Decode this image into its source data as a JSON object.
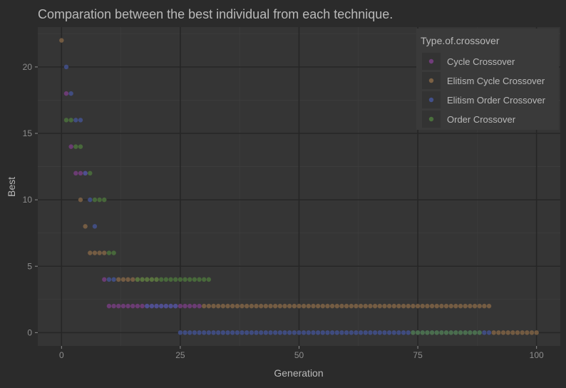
{
  "chart_data": {
    "type": "scatter",
    "title": "Comparation between the best individual from each technique.",
    "xlabel": "Generation",
    "ylabel": "Best",
    "xlim": [
      -5,
      105
    ],
    "ylim": [
      -1,
      23
    ],
    "x_ticks": [
      0,
      25,
      50,
      75,
      100
    ],
    "y_ticks": [
      0,
      5,
      10,
      15,
      20
    ],
    "grid": true,
    "legend": {
      "title": "Type.of.crossover",
      "placement": "top-right",
      "entries": [
        "Cycle Crossover",
        "Elitism Cycle Crossover",
        "Elitism Order Crossover",
        "Order Crossover"
      ]
    },
    "colors": {
      "background": "#2b2b2b",
      "panel": "#353535",
      "grid_major": "#262626",
      "grid_minor": "#3d3d3d",
      "text": "#b9b9b9",
      "axis_text": "#8e8e8e"
    },
    "series": [
      {
        "name": "Cycle Crossover",
        "color": "#7d3f88",
        "segments": [
          {
            "x_start": 1,
            "x_end": 1,
            "y": 18
          },
          {
            "x_start": 2,
            "x_end": 2,
            "y": 14
          },
          {
            "x_start": 3,
            "x_end": 5,
            "y": 12
          },
          {
            "x_start": 9,
            "x_end": 9,
            "y": 4
          },
          {
            "x_start": 10,
            "x_end": 29,
            "y": 2
          }
        ]
      },
      {
        "name": "Elitism Cycle Crossover",
        "color": "#8a6a48",
        "segments": [
          {
            "x_start": 0,
            "x_end": 0,
            "y": 22
          },
          {
            "x_start": 4,
            "x_end": 4,
            "y": 10
          },
          {
            "x_start": 5,
            "x_end": 5,
            "y": 8
          },
          {
            "x_start": 6,
            "x_end": 9,
            "y": 6
          },
          {
            "x_start": 12,
            "x_end": 20,
            "y": 4
          },
          {
            "x_start": 30,
            "x_end": 90,
            "y": 2
          },
          {
            "x_start": 91,
            "x_end": 100,
            "y": 0
          }
        ]
      },
      {
        "name": "Elitism Order Crossover",
        "color": "#45569a",
        "segments": [
          {
            "x_start": 1,
            "x_end": 1,
            "y": 20
          },
          {
            "x_start": 2,
            "x_end": 2,
            "y": 18
          },
          {
            "x_start": 3,
            "x_end": 4,
            "y": 16
          },
          {
            "x_start": 5,
            "x_end": 5,
            "y": 12
          },
          {
            "x_start": 6,
            "x_end": 6,
            "y": 10
          },
          {
            "x_start": 7,
            "x_end": 7,
            "y": 8
          },
          {
            "x_start": 10,
            "x_end": 11,
            "y": 4
          },
          {
            "x_start": 18,
            "x_end": 24,
            "y": 2
          },
          {
            "x_start": 25,
            "x_end": 90,
            "y": 0
          }
        ]
      },
      {
        "name": "Order Crossover",
        "color": "#4f7a3e",
        "segments": [
          {
            "x_start": 1,
            "x_end": 2,
            "y": 16
          },
          {
            "x_start": 3,
            "x_end": 4,
            "y": 14
          },
          {
            "x_start": 6,
            "x_end": 6,
            "y": 12
          },
          {
            "x_start": 7,
            "x_end": 9,
            "y": 10
          },
          {
            "x_start": 10,
            "x_end": 11,
            "y": 6
          },
          {
            "x_start": 16,
            "x_end": 31,
            "y": 4
          },
          {
            "x_start": 74,
            "x_end": 88,
            "y": 0
          }
        ]
      }
    ]
  }
}
